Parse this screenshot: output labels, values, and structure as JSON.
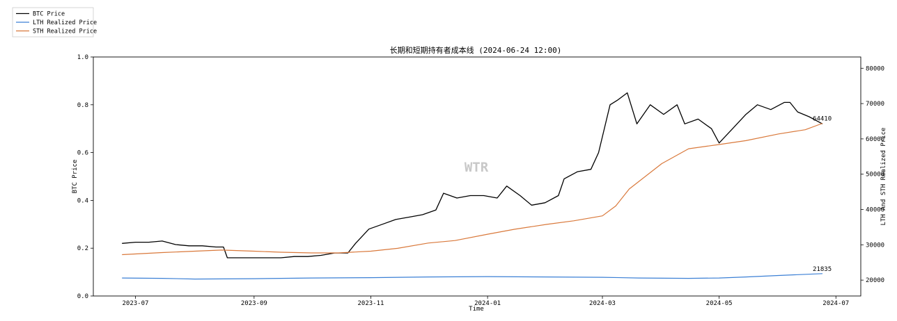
{
  "chart_data": {
    "type": "line",
    "title": "长期和短期持有者成本线 (2024-06-24 12:00)",
    "xlabel": "Time",
    "ylabel_left": "BTC Price",
    "ylabel_right": "LTH And STH Realized Price",
    "watermark": "WTR",
    "x_ticks": [
      "2023-07",
      "2023-09",
      "2023-11",
      "2024-01",
      "2024-03",
      "2024-05",
      "2024-07"
    ],
    "x_tick_dates": [
      "2023-07-01",
      "2023-09-01",
      "2023-11-01",
      "2024-01-01",
      "2024-03-01",
      "2024-05-01",
      "2024-07-01"
    ],
    "x_range": [
      "2023-06-09",
      "2024-07-14"
    ],
    "y_left_ticks": [
      "0.0",
      "0.2",
      "0.4",
      "0.6",
      "0.8",
      "1.0"
    ],
    "y_left_range": [
      0,
      1
    ],
    "y_right_ticks": [
      "20000",
      "30000",
      "40000",
      "50000",
      "60000",
      "70000",
      "80000"
    ],
    "y_right_range": [
      15500,
      83200
    ],
    "grid": false,
    "legend_position": "top-left",
    "series": [
      {
        "name": "BTC Price",
        "color": "#000000",
        "x": [
          "2023-06-24",
          "2023-07-01",
          "2023-07-08",
          "2023-07-15",
          "2023-07-22",
          "2023-07-29",
          "2023-08-05",
          "2023-08-12",
          "2023-08-16",
          "2023-08-18",
          "2023-08-25",
          "2023-09-01",
          "2023-09-08",
          "2023-09-15",
          "2023-09-22",
          "2023-09-29",
          "2023-10-06",
          "2023-10-13",
          "2023-10-20",
          "2023-10-24",
          "2023-10-31",
          "2023-11-07",
          "2023-11-14",
          "2023-11-21",
          "2023-11-28",
          "2023-12-05",
          "2023-12-09",
          "2023-12-16",
          "2023-12-23",
          "2023-12-30",
          "2024-01-06",
          "2024-01-11",
          "2024-01-18",
          "2024-01-24",
          "2024-01-31",
          "2024-02-07",
          "2024-02-10",
          "2024-02-17",
          "2024-02-24",
          "2024-02-28",
          "2024-03-05",
          "2024-03-09",
          "2024-03-14",
          "2024-03-19",
          "2024-03-26",
          "2024-04-02",
          "2024-04-09",
          "2024-04-13",
          "2024-04-20",
          "2024-04-27",
          "2024-05-01",
          "2024-05-08",
          "2024-05-15",
          "2024-05-21",
          "2024-05-28",
          "2024-06-04",
          "2024-06-07",
          "2024-06-11",
          "2024-06-17",
          "2024-06-24"
        ],
        "y": [
          0.22,
          0.225,
          0.225,
          0.23,
          0.215,
          0.21,
          0.21,
          0.205,
          0.205,
          0.16,
          0.16,
          0.16,
          0.16,
          0.16,
          0.165,
          0.165,
          0.17,
          0.18,
          0.18,
          0.22,
          0.28,
          0.3,
          0.32,
          0.33,
          0.34,
          0.36,
          0.43,
          0.41,
          0.42,
          0.42,
          0.41,
          0.46,
          0.42,
          0.38,
          0.39,
          0.42,
          0.49,
          0.52,
          0.53,
          0.6,
          0.8,
          0.82,
          0.85,
          0.72,
          0.8,
          0.76,
          0.8,
          0.72,
          0.74,
          0.7,
          0.64,
          0.7,
          0.76,
          0.8,
          0.78,
          0.81,
          0.81,
          0.77,
          0.75,
          0.72
        ]
      },
      {
        "name": "LTH Realized Price",
        "color": "#3a7fd5",
        "x": [
          "2023-06-24",
          "2023-07-15",
          "2023-08-01",
          "2023-09-01",
          "2023-10-01",
          "2023-11-01",
          "2023-12-01",
          "2024-01-01",
          "2024-02-01",
          "2024-03-01",
          "2024-03-20",
          "2024-04-15",
          "2024-05-01",
          "2024-05-15",
          "2024-06-01",
          "2024-06-24"
        ],
        "y": [
          20600,
          20500,
          20300,
          20400,
          20600,
          20700,
          20900,
          21000,
          20900,
          20800,
          20600,
          20500,
          20600,
          20900,
          21300,
          21835
        ]
      },
      {
        "name": "STH Realized Price",
        "color": "#d9783a",
        "x": [
          "2023-06-24",
          "2023-07-15",
          "2023-08-01",
          "2023-08-15",
          "2023-09-01",
          "2023-09-15",
          "2023-10-01",
          "2023-10-15",
          "2023-11-01",
          "2023-11-15",
          "2023-12-01",
          "2023-12-15",
          "2024-01-01",
          "2024-01-15",
          "2024-02-01",
          "2024-02-15",
          "2024-03-01",
          "2024-03-08",
          "2024-03-15",
          "2024-04-01",
          "2024-04-15",
          "2024-05-01",
          "2024-05-15",
          "2024-06-01",
          "2024-06-15",
          "2024-06-24"
        ],
        "y": [
          27200,
          27800,
          28200,
          28500,
          28200,
          27900,
          27700,
          27700,
          28200,
          29000,
          30500,
          31200,
          33000,
          34400,
          35800,
          36800,
          38200,
          41000,
          45800,
          53000,
          57200,
          58400,
          59500,
          61400,
          62600,
          64410
        ]
      }
    ],
    "annotations": [
      {
        "text": "64410",
        "series": "STH Realized Price"
      },
      {
        "text": "21835",
        "series": "LTH Realized Price"
      }
    ]
  }
}
